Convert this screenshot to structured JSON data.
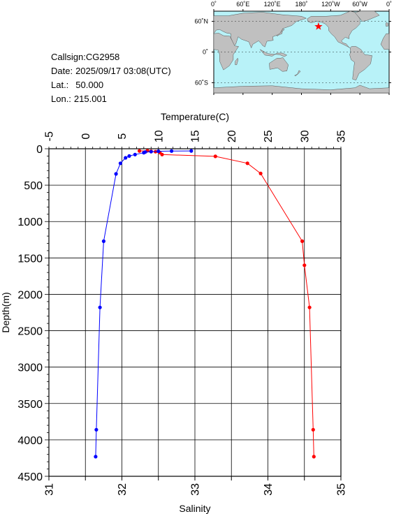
{
  "station": {
    "callsign_label": "Callsign:",
    "callsign": "CG2958",
    "date_label": "Date:",
    "date": "2025/09/17 03:08(UTC)",
    "lat_label": "Lat.:",
    "lat": "50.000",
    "lon_label": "Lon.:",
    "lon": "215.001"
  },
  "map": {
    "lon_ticks": [
      "0˚",
      "60˚E",
      "120˚E",
      "180˚",
      "120˚W",
      "60˚W",
      "0˚"
    ],
    "lat_ticks": [
      "60˚N",
      "0˚",
      "60˚S"
    ],
    "ocean_color": "#b8f2f8",
    "land_color": "#c0c0c0",
    "marker": "star",
    "marker_color": "#ff0000"
  },
  "chart_data": {
    "type": "line",
    "ylabel": "Depth(m)",
    "ylim": [
      0,
      4500
    ],
    "yticks": [
      "0",
      "500",
      "1000",
      "1500",
      "2000",
      "2500",
      "3000",
      "3500",
      "4000",
      "4500"
    ],
    "top_axis": {
      "label": "Temperature(C)",
      "range": [
        -5,
        35
      ],
      "ticks": [
        "-5",
        "0",
        "5",
        "10",
        "15",
        "20",
        "25",
        "30",
        "35"
      ]
    },
    "bottom_axis": {
      "label": "Salinity",
      "range": [
        31,
        35
      ],
      "ticks": [
        "31",
        "32",
        "33",
        "34",
        "35"
      ]
    },
    "grid": true,
    "series": [
      {
        "axis": "temperature",
        "color": "#ff0000",
        "points": [
          [
            7.4,
            30
          ],
          [
            8.5,
            28
          ],
          [
            9.0,
            35
          ],
          [
            9.6,
            40
          ],
          [
            10.2,
            52
          ],
          [
            10.5,
            80
          ],
          [
            17.8,
            105
          ],
          [
            22.2,
            200
          ],
          [
            24.0,
            340
          ],
          [
            29.7,
            1270
          ],
          [
            30.0,
            1600
          ],
          [
            30.7,
            2180
          ],
          [
            31.2,
            3860
          ],
          [
            31.3,
            4230
          ]
        ]
      },
      {
        "axis": "salinity",
        "color": "#0000ff",
        "points": [
          [
            32.95,
            30
          ],
          [
            32.68,
            32
          ],
          [
            32.5,
            35
          ],
          [
            32.4,
            40
          ],
          [
            32.32,
            45
          ],
          [
            32.3,
            55
          ],
          [
            32.18,
            80
          ],
          [
            32.1,
            100
          ],
          [
            32.05,
            125
          ],
          [
            31.98,
            200
          ],
          [
            31.92,
            345
          ],
          [
            31.75,
            1270
          ],
          [
            31.7,
            2180
          ],
          [
            31.65,
            3860
          ],
          [
            31.64,
            4230
          ]
        ]
      }
    ]
  }
}
